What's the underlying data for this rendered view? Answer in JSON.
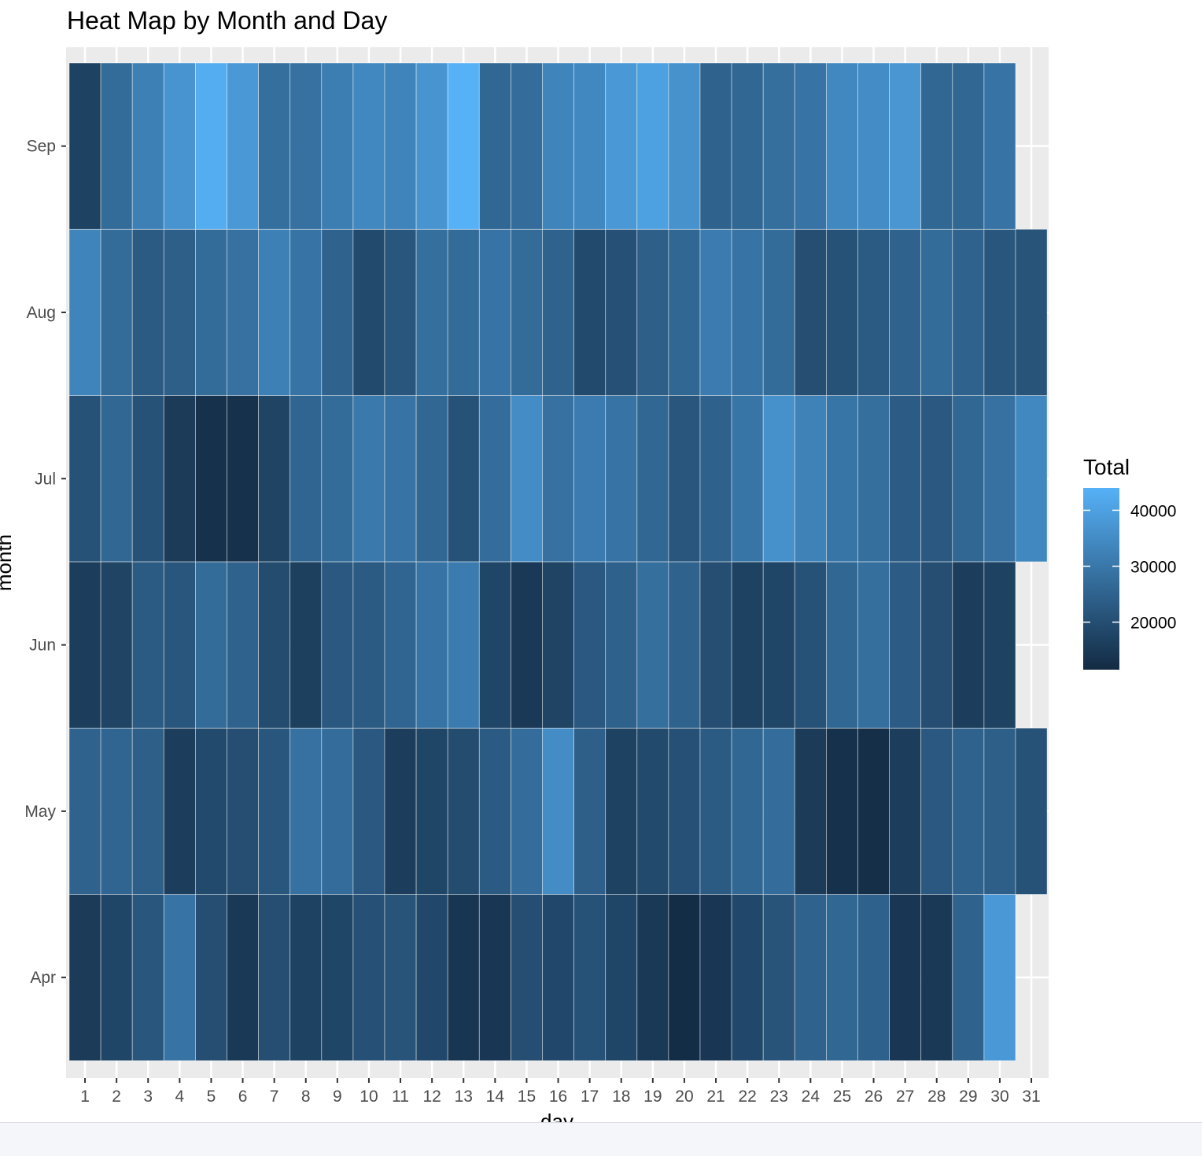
{
  "chart_data": {
    "type": "heatmap",
    "title": "Heat Map by Month and Day",
    "xlabel": "day",
    "ylabel": "month",
    "x": [
      "1",
      "2",
      "3",
      "4",
      "5",
      "6",
      "7",
      "8",
      "9",
      "10",
      "11",
      "12",
      "13",
      "14",
      "15",
      "16",
      "17",
      "18",
      "19",
      "20",
      "21",
      "22",
      "23",
      "24",
      "25",
      "26",
      "27",
      "28",
      "29",
      "30",
      "31"
    ],
    "y": [
      "Apr",
      "May",
      "Jun",
      "Jul",
      "Aug",
      "Sep"
    ],
    "legend": {
      "title": "Total",
      "position": "right",
      "ticks": [
        20000,
        30000,
        40000
      ],
      "tick_labels": [
        "20000",
        "30000",
        "40000"
      ],
      "range": [
        11500,
        44000
      ],
      "low_color": "#132B43",
      "high_color": "#56B1F7"
    },
    "grid": true,
    "values": {
      "Apr": [
        15500,
        18000,
        22000,
        29000,
        20000,
        15000,
        20000,
        17000,
        18000,
        20500,
        21500,
        18500,
        14000,
        14500,
        20000,
        18500,
        21000,
        18000,
        15000,
        12000,
        14500,
        18500,
        21500,
        25000,
        26000,
        24500,
        14500,
        15000,
        25000,
        38000,
        null
      ],
      "May": [
        25000,
        25500,
        24000,
        16000,
        19000,
        20000,
        22000,
        28500,
        27500,
        22500,
        16000,
        18000,
        19500,
        23000,
        27500,
        35000,
        24000,
        17000,
        19000,
        20500,
        23000,
        26000,
        27500,
        15500,
        13000,
        12500,
        16000,
        22500,
        25000,
        24000,
        21000
      ],
      "Jun": [
        16000,
        17500,
        23000,
        22000,
        27000,
        25000,
        19500,
        16500,
        22500,
        23000,
        25500,
        29000,
        31000,
        18000,
        15000,
        17500,
        22500,
        24500,
        28000,
        25000,
        20000,
        17000,
        18000,
        21000,
        26000,
        28000,
        23500,
        20000,
        16000,
        17000,
        null
      ],
      "Jul": [
        21000,
        26000,
        21000,
        15500,
        13000,
        13000,
        17500,
        25500,
        27000,
        30500,
        29000,
        26000,
        21000,
        27500,
        35000,
        28500,
        31000,
        29000,
        26000,
        22000,
        24500,
        29500,
        36000,
        32500,
        29500,
        28000,
        23500,
        22500,
        26000,
        28500,
        34000
      ],
      "Aug": [
        33000,
        27000,
        23000,
        24000,
        27000,
        28500,
        32000,
        29000,
        25000,
        19000,
        22000,
        28000,
        27000,
        29000,
        27000,
        25000,
        19000,
        20500,
        24000,
        26000,
        31000,
        29000,
        27000,
        20000,
        21000,
        23000,
        25000,
        27000,
        25000,
        22000,
        21500
      ],
      "Sep": [
        17000,
        27000,
        32000,
        37000,
        43000,
        38000,
        28000,
        28500,
        31500,
        34000,
        33000,
        37000,
        44000,
        26000,
        27500,
        33000,
        34000,
        38000,
        40000,
        36500,
        25000,
        26000,
        28000,
        29000,
        34000,
        35000,
        37500,
        26000,
        26000,
        29000,
        null
      ]
    }
  }
}
